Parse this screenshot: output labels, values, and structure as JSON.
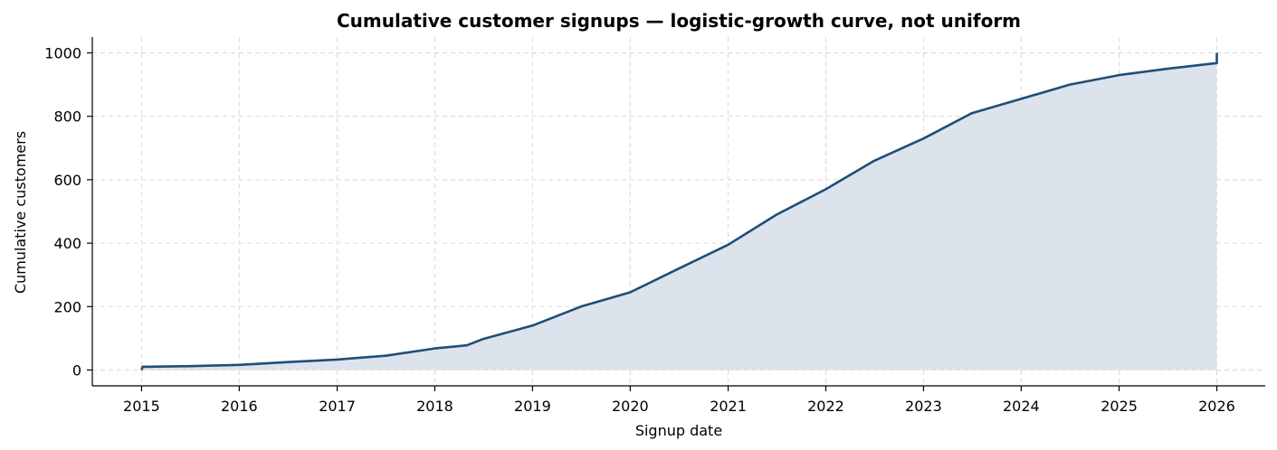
{
  "chart_data": {
    "type": "line",
    "title": "Cumulative customer signups — logistic-growth curve, not uniform",
    "xlabel": "Signup date",
    "ylabel": "Cumulative customers",
    "x_ticks": [
      "2015",
      "2016",
      "2017",
      "2018",
      "2019",
      "2020",
      "2021",
      "2022",
      "2023",
      "2024",
      "2025",
      "2026"
    ],
    "y_ticks": [
      0,
      200,
      400,
      600,
      800,
      1000
    ],
    "xlim": [
      "2014-07-01",
      "2026-07-01"
    ],
    "ylim": [
      -50,
      1050
    ],
    "grid": true,
    "fill_under": true,
    "line_color": "#1f4e79",
    "fill_color": "#dde3ec",
    "series": [
      {
        "x": [
          "2015-01-01",
          "2015-01-05",
          "2015-07-01",
          "2016-01-01",
          "2016-07-01",
          "2017-01-01",
          "2017-07-01",
          "2018-01-01",
          "2018-05-01",
          "2018-07-01",
          "2019-01-01",
          "2019-07-01",
          "2020-01-01",
          "2020-07-01",
          "2021-01-01",
          "2021-07-01",
          "2022-01-01",
          "2022-07-01",
          "2023-01-01",
          "2023-07-01",
          "2024-01-01",
          "2024-07-01",
          "2025-01-01",
          "2025-07-01",
          "2026-01-01",
          "2026-01-01"
        ],
        "y": [
          0,
          10,
          12,
          16,
          25,
          33,
          45,
          68,
          78,
          98,
          140,
          200,
          245,
          320,
          395,
          490,
          570,
          660,
          730,
          810,
          855,
          900,
          930,
          950,
          968,
          1000
        ]
      }
    ]
  }
}
